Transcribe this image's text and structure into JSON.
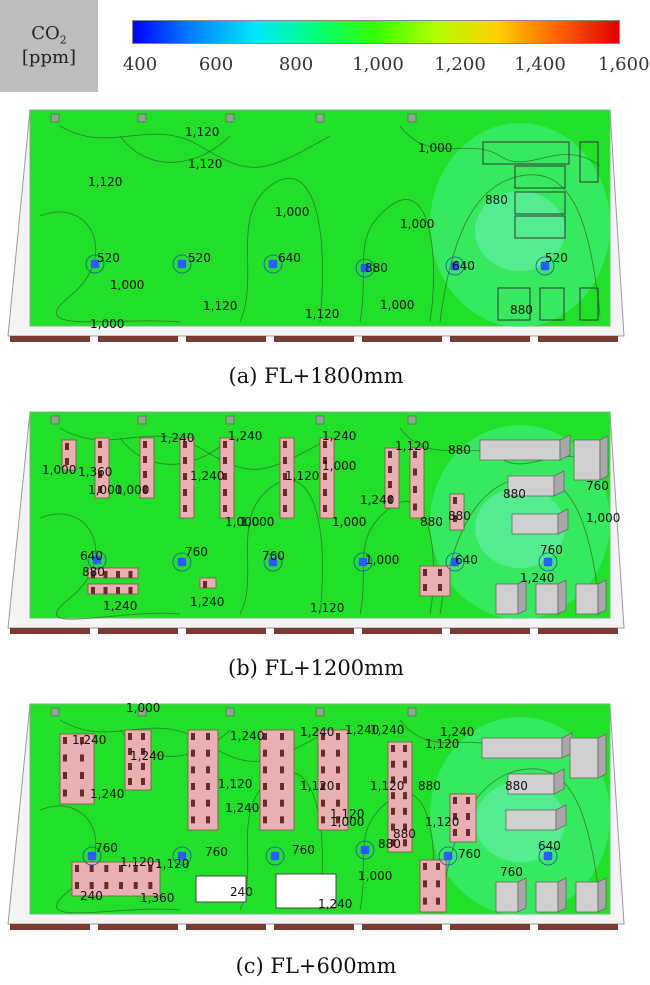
{
  "legend": {
    "title_line1": "CO",
    "title_sub": "2",
    "title_line2": "[ppm]",
    "ticks": [
      "400",
      "600",
      "800",
      "1,000",
      "1,200",
      "1,400",
      "1,600"
    ]
  },
  "panels": [
    {
      "caption": "(a) FL+1800mm",
      "labels": [
        "1,120",
        "1,120",
        "1,120",
        "1,000",
        "1,000",
        "1,000",
        "880",
        "520",
        "520",
        "640",
        "880",
        "640",
        "520",
        "1,000",
        "1,120",
        "1,120",
        "1,000",
        "880",
        "1,000"
      ]
    },
    {
      "caption": "(b) FL+1200mm",
      "labels": [
        "1,240",
        "1,240",
        "1,240",
        "1,120",
        "1,000",
        "1,360",
        "1,000",
        "1,000",
        "1,240",
        "1,120",
        "1,000",
        "1,240",
        "1,000",
        "1,000",
        "1,000",
        "880",
        "880",
        "880",
        "880",
        "760",
        "1,000",
        "640",
        "760",
        "760",
        "760",
        "1,000",
        "640",
        "880",
        "1,240",
        "1,240",
        "1,240",
        "1,120"
      ]
    },
    {
      "caption": "(c) FL+600mm",
      "labels": [
        "1,000",
        "1,240",
        "1,240",
        "1,240",
        "1,240",
        "1,240",
        "1,240",
        "1,240",
        "1,240",
        "1,120",
        "1,120",
        "1,120",
        "1,120",
        "1,240",
        "1,120",
        "1,000",
        "880",
        "880",
        "1,120",
        "880",
        "760",
        "1,120",
        "1,120",
        "760",
        "760",
        "880",
        "1,000",
        "760",
        "640",
        "760",
        "240",
        "1,240",
        "1,360",
        "240"
      ]
    }
  ],
  "colors": {
    "floor_green": "#22e02a",
    "room_outline": "#9a9a9a",
    "diffuser_blue": "#2a5cff",
    "floor_strip": "#7a3b32",
    "desk_pink": "#e8b0b0",
    "cabinet_gray": "#d0d0d0"
  }
}
